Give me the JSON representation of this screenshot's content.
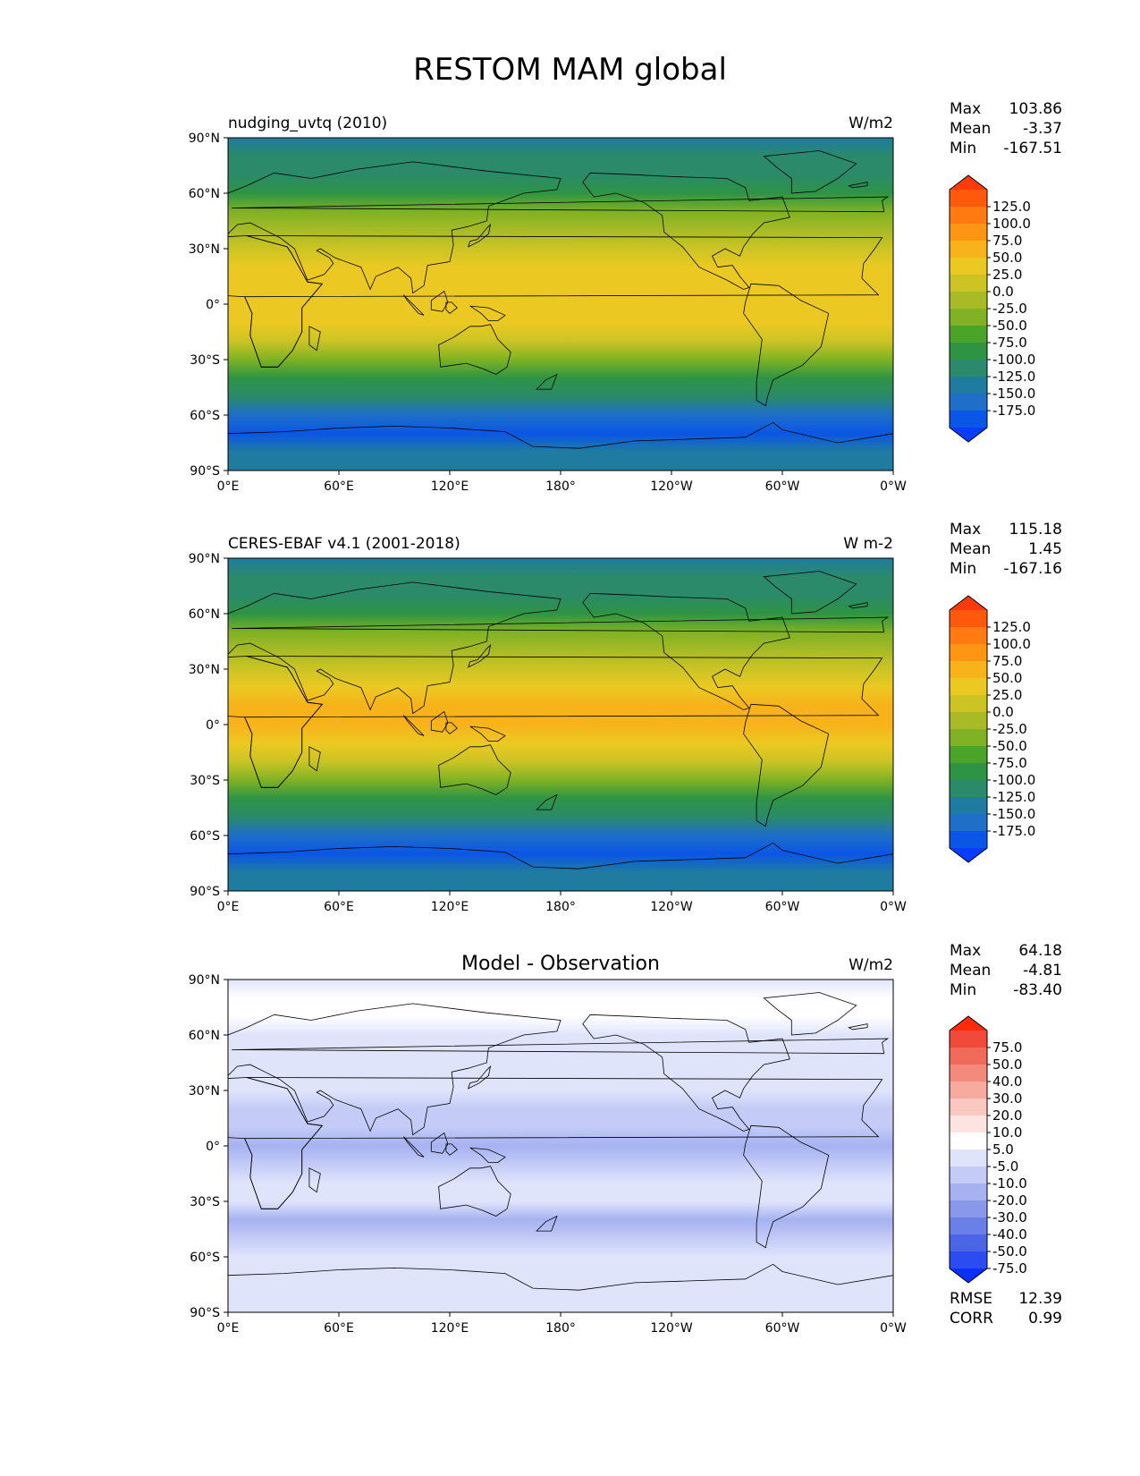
{
  "figure": {
    "title": "RESTOM MAM global"
  },
  "axes": {
    "lat_ticks": [
      "90°N",
      "60°N",
      "30°N",
      "0°",
      "30°S",
      "60°S",
      "90°S"
    ],
    "lon_ticks": [
      "0°E",
      "60°E",
      "120°E",
      "180°",
      "120°W",
      "60°W",
      "0°W"
    ]
  },
  "panels": [
    {
      "title_left": "nudging_uvtq (2010)",
      "title_center": "",
      "units": "W/m2",
      "stats": {
        "max_label": "Max",
        "max": "103.86",
        "mean_label": "Mean",
        "mean": "-3.37",
        "min_label": "Min",
        "min": "-167.51"
      },
      "colorbar": {
        "labels": [
          "125.0",
          "100.0",
          "75.0",
          "50.0",
          "25.0",
          "0.0",
          "-25.0",
          "-50.0",
          "-75.0",
          "-100.0",
          "-125.0",
          "-150.0",
          "-175.0"
        ],
        "colors": [
          "#ff3a0a",
          "#ff5a0c",
          "#ff7a10",
          "#ff9512",
          "#f8b21a",
          "#ecc922",
          "#cbc424",
          "#a8ba26",
          "#7fb224",
          "#4aa42a",
          "#2e9444",
          "#2a8a6a",
          "#1f7ca0",
          "#1f6ec8",
          "#0a56e6",
          "#0a3cff"
        ]
      },
      "extra_stats": []
    },
    {
      "title_left": "CERES-EBAF v4.1 (2001-2018)",
      "title_center": "",
      "units": "W m-2",
      "stats": {
        "max_label": "Max",
        "max": "115.18",
        "mean_label": "Mean",
        "mean": "1.45",
        "min_label": "Min",
        "min": "-167.16"
      },
      "colorbar": {
        "labels": [
          "125.0",
          "100.0",
          "75.0",
          "50.0",
          "25.0",
          "0.0",
          "-25.0",
          "-50.0",
          "-75.0",
          "-100.0",
          "-125.0",
          "-150.0",
          "-175.0"
        ],
        "colors": [
          "#ff3a0a",
          "#ff5a0c",
          "#ff7a10",
          "#ff9512",
          "#f8b21a",
          "#ecc922",
          "#cbc424",
          "#a8ba26",
          "#7fb224",
          "#4aa42a",
          "#2e9444",
          "#2a8a6a",
          "#1f7ca0",
          "#1f6ec8",
          "#0a56e6",
          "#0a3cff"
        ]
      },
      "extra_stats": []
    },
    {
      "title_left": "",
      "title_center": "Model - Observation",
      "units": "W/m2",
      "stats": {
        "max_label": "Max",
        "max": "64.18",
        "mean_label": "Mean",
        "mean": "-4.81",
        "min_label": "Min",
        "min": "-83.40"
      },
      "colorbar": {
        "labels": [
          "75.0",
          "50.0",
          "40.0",
          "30.0",
          "20.0",
          "10.0",
          "5.0",
          "-5.0",
          "-10.0",
          "-20.0",
          "-30.0",
          "-40.0",
          "-50.0",
          "-75.0"
        ],
        "colors": [
          "#ff2a0a",
          "#f04a3a",
          "#f26a5a",
          "#f48a7c",
          "#f7aa9e",
          "#fac8c0",
          "#fde4e0",
          "#ffffff",
          "#dfe4fb",
          "#c3cbf6",
          "#a6b2f1",
          "#8a98ec",
          "#6a7fe8",
          "#4a66e6",
          "#2a4cf0",
          "#0a30ff"
        ]
      },
      "extra_stats": [
        {
          "label": "RMSE",
          "value": "12.39"
        },
        {
          "label": "CORR",
          "value": "0.99"
        }
      ]
    }
  ],
  "chart_data": [
    {
      "type": "heatmap",
      "title": "nudging_uvtq (2010)",
      "units": "W/m2",
      "lat_range": [
        -90,
        90
      ],
      "lon_range": [
        0,
        360
      ],
      "colorbar_levels": [
        -175,
        -150,
        -125,
        -100,
        -75,
        -50,
        -25,
        0,
        25,
        50,
        75,
        100,
        125
      ],
      "zonal_profile": {
        "lat": [
          90,
          80,
          70,
          60,
          50,
          40,
          30,
          20,
          10,
          0,
          -10,
          -20,
          -30,
          -40,
          -50,
          -60,
          -70,
          -80,
          -90
        ],
        "value": [
          -108,
          -98,
          -82,
          -60,
          -25,
          12,
          40,
          58,
          70,
          68,
          55,
          30,
          -5,
          -55,
          -95,
          -132,
          -160,
          -112,
          -105
        ]
      },
      "stats": {
        "max": 103.86,
        "mean": -3.37,
        "min": -167.51
      }
    },
    {
      "type": "heatmap",
      "title": "CERES-EBAF v4.1 (2001-2018)",
      "units": "W m-2",
      "lat_range": [
        -90,
        90
      ],
      "lon_range": [
        0,
        360
      ],
      "colorbar_levels": [
        -175,
        -150,
        -125,
        -100,
        -75,
        -50,
        -25,
        0,
        25,
        50,
        75,
        100,
        125
      ],
      "zonal_profile": {
        "lat": [
          90,
          80,
          70,
          60,
          50,
          40,
          30,
          20,
          10,
          0,
          -10,
          -20,
          -30,
          -40,
          -50,
          -60,
          -70,
          -80,
          -90
        ],
        "value": [
          -108,
          -97,
          -80,
          -58,
          -22,
          15,
          45,
          65,
          78,
          76,
          62,
          35,
          -2,
          -52,
          -92,
          -130,
          -158,
          -112,
          -105
        ]
      },
      "stats": {
        "max": 115.18,
        "mean": 1.45,
        "min": -167.16
      }
    },
    {
      "type": "heatmap",
      "title": "Model - Observation",
      "units": "W/m2",
      "lat_range": [
        -90,
        90
      ],
      "lon_range": [
        0,
        360
      ],
      "colorbar_levels": [
        -75,
        -50,
        -40,
        -30,
        -20,
        -10,
        -5,
        5,
        10,
        20,
        30,
        40,
        50,
        75
      ],
      "zonal_profile": {
        "lat": [
          90,
          80,
          70,
          60,
          50,
          40,
          30,
          20,
          10,
          0,
          -10,
          -20,
          -30,
          -40,
          -50,
          -60,
          -70,
          -80,
          -90
        ],
        "value": [
          0,
          6,
          8,
          2,
          -4,
          4,
          2,
          -6,
          -10,
          -12,
          -8,
          -4,
          0,
          -14,
          -10,
          0,
          0,
          4,
          0
        ]
      },
      "stats": {
        "max": 64.18,
        "mean": -4.81,
        "min": -83.4,
        "rmse": 12.39,
        "corr": 0.99
      }
    }
  ]
}
